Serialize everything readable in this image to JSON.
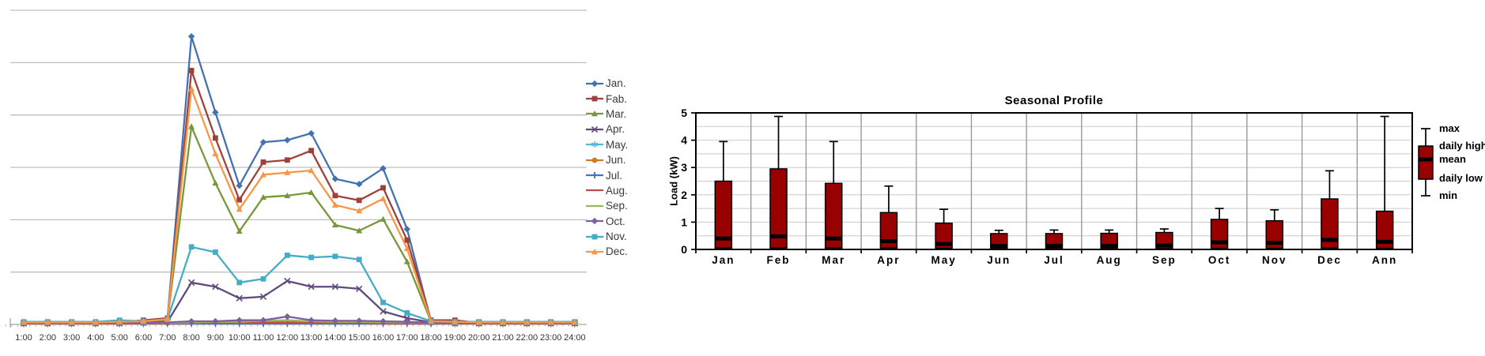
{
  "page": {
    "background": "#ffffff"
  },
  "chart_data": [
    {
      "type": "line",
      "title": "",
      "x_labels": [
        "1:00",
        "2:00",
        "3:00",
        "4:00",
        "5:00",
        "6:00",
        "7:00",
        "8:00",
        "9:00",
        "10:00",
        "11:00",
        "12:00",
        "13:00",
        "14:00",
        "15:00",
        "16:00",
        "17:00",
        "18:00",
        "19:00",
        "20:00",
        "21:00",
        "22:00",
        "23:00",
        "24:00"
      ],
      "ylim": [
        0,
        6.2
      ],
      "gridline_step": 1,
      "grid_color": "#BFBFBF",
      "axis_color": "#A8A8A8",
      "label_color": "#333333",
      "legend_position": "right",
      "series": [
        {
          "name": "Jan.",
          "color": "#4472B0",
          "marker": "diamond",
          "values": [
            0.03,
            0.03,
            0.03,
            0.03,
            0.04,
            0.05,
            0.1,
            5.5,
            4.05,
            2.65,
            3.48,
            3.52,
            3.65,
            2.78,
            2.68,
            2.98,
            1.82,
            0.06,
            0.04,
            0.03,
            0.03,
            0.03,
            0.03,
            0.03
          ]
        },
        {
          "name": "Fab.",
          "color": "#9E413B",
          "marker": "square",
          "values": [
            0.03,
            0.03,
            0.03,
            0.03,
            0.04,
            0.08,
            0.12,
            4.85,
            3.56,
            2.38,
            3.1,
            3.14,
            3.32,
            2.46,
            2.37,
            2.61,
            1.61,
            0.08,
            0.08,
            0.03,
            0.03,
            0.03,
            0.03,
            0.03
          ]
        },
        {
          "name": "Mar.",
          "color": "#76983B",
          "marker": "triangle",
          "values": [
            0.02,
            0.02,
            0.02,
            0.02,
            0.03,
            0.04,
            0.08,
            3.78,
            2.7,
            1.78,
            2.43,
            2.46,
            2.52,
            1.9,
            1.79,
            2.01,
            1.2,
            0.05,
            0.03,
            0.02,
            0.02,
            0.02,
            0.02,
            0.02
          ]
        },
        {
          "name": "Apr.",
          "color": "#604A7B",
          "marker": "x",
          "values": [
            0.02,
            0.02,
            0.02,
            0.02,
            0.02,
            0.03,
            0.05,
            0.8,
            0.72,
            0.5,
            0.53,
            0.83,
            0.72,
            0.72,
            0.68,
            0.25,
            0.12,
            0.04,
            0.02,
            0.02,
            0.02,
            0.02,
            0.02,
            0.02
          ]
        },
        {
          "name": "May.",
          "color": "#55B7D9",
          "marker": "asterisk",
          "values": [
            0.02,
            0.02,
            0.02,
            0.02,
            0.02,
            0.02,
            0.03,
            0.04,
            0.04,
            0.04,
            0.04,
            0.05,
            0.04,
            0.04,
            0.04,
            0.03,
            0.03,
            0.02,
            0.02,
            0.02,
            0.02,
            0.02,
            0.02,
            0.02
          ]
        },
        {
          "name": "Jun.",
          "color": "#CE7A29",
          "marker": "circle",
          "values": [
            0.03,
            0.03,
            0.03,
            0.03,
            0.03,
            0.03,
            0.03,
            0.04,
            0.04,
            0.05,
            0.05,
            0.06,
            0.05,
            0.05,
            0.05,
            0.04,
            0.04,
            0.04,
            0.03,
            0.03,
            0.03,
            0.03,
            0.03,
            0.03
          ]
        },
        {
          "name": "Jul.",
          "color": "#4472C4",
          "marker": "plus",
          "values": [
            0.02,
            0.02,
            0.02,
            0.02,
            0.02,
            0.02,
            0.02,
            0.02,
            0.02,
            0.02,
            0.02,
            0.02,
            0.02,
            0.02,
            0.02,
            0.02,
            0.02,
            0.02,
            0.02,
            0.02,
            0.02,
            0.02,
            0.02,
            0.02
          ]
        },
        {
          "name": "Aug.",
          "color": "#BE4B48",
          "marker": "none",
          "values": [
            0.02,
            0.02,
            0.02,
            0.02,
            0.02,
            0.02,
            0.02,
            0.03,
            0.03,
            0.03,
            0.03,
            0.03,
            0.03,
            0.03,
            0.03,
            0.02,
            0.02,
            0.02,
            0.02,
            0.02,
            0.02,
            0.02,
            0.02,
            0.02
          ]
        },
        {
          "name": "Sep.",
          "color": "#9ABA59",
          "marker": "none",
          "values": [
            0.03,
            0.03,
            0.03,
            0.03,
            0.03,
            0.03,
            0.03,
            0.04,
            0.05,
            0.05,
            0.07,
            0.08,
            0.06,
            0.05,
            0.05,
            0.04,
            0.04,
            0.03,
            0.03,
            0.03,
            0.03,
            0.03,
            0.03,
            0.03
          ]
        },
        {
          "name": "Oct.",
          "color": "#7D60A0",
          "marker": "diamond",
          "values": [
            0.03,
            0.03,
            0.03,
            0.03,
            0.03,
            0.03,
            0.04,
            0.06,
            0.06,
            0.08,
            0.08,
            0.15,
            0.08,
            0.07,
            0.07,
            0.06,
            0.05,
            0.03,
            0.03,
            0.03,
            0.03,
            0.03,
            0.03,
            0.03
          ]
        },
        {
          "name": "Nov.",
          "color": "#45ACC8",
          "marker": "square",
          "values": [
            0.05,
            0.05,
            0.05,
            0.05,
            0.08,
            0.06,
            0.1,
            1.48,
            1.38,
            0.8,
            0.87,
            1.32,
            1.28,
            1.3,
            1.24,
            0.42,
            0.22,
            0.06,
            0.05,
            0.05,
            0.05,
            0.05,
            0.05,
            0.05
          ]
        },
        {
          "name": "Dec.",
          "color": "#F79646",
          "marker": "triangle",
          "values": [
            0.04,
            0.04,
            0.04,
            0.04,
            0.05,
            0.06,
            0.1,
            4.5,
            3.26,
            2.2,
            2.86,
            2.9,
            2.94,
            2.28,
            2.17,
            2.4,
            1.45,
            0.06,
            0.05,
            0.04,
            0.04,
            0.04,
            0.04,
            0.04
          ]
        }
      ]
    },
    {
      "type": "box",
      "title": "Seasonal Profile",
      "ylabel": "Load (kW)",
      "ylim": [
        0,
        5
      ],
      "yticks": [
        "0",
        "1",
        "2",
        "3",
        "4",
        "5"
      ],
      "minor_grid_step": 0.5,
      "bar_color": "#990000",
      "box_border_color": "#000000",
      "h_grid_color": "#C9C9C9",
      "v_grid_color": "#9A9A9A",
      "categories": [
        "Jan",
        "Feb",
        "Mar",
        "Apr",
        "May",
        "Jun",
        "Jul",
        "Aug",
        "Sep",
        "Oct",
        "Nov",
        "Dec",
        "Ann"
      ],
      "legend_labels": [
        "max",
        "daily high",
        "mean",
        "daily low",
        "min"
      ],
      "boxes": [
        {
          "month": "Jan",
          "max": 3.95,
          "daily_high": 2.5,
          "mean": 0.4,
          "daily_low": 0.05,
          "min": 0
        },
        {
          "month": "Feb",
          "max": 4.87,
          "daily_high": 2.95,
          "mean": 0.48,
          "daily_low": 0.05,
          "min": 0
        },
        {
          "month": "Mar",
          "max": 3.95,
          "daily_high": 2.42,
          "mean": 0.4,
          "daily_low": 0.05,
          "min": 0
        },
        {
          "month": "Apr",
          "max": 2.32,
          "daily_high": 1.35,
          "mean": 0.3,
          "daily_low": 0.05,
          "min": 0
        },
        {
          "month": "May",
          "max": 1.47,
          "daily_high": 0.96,
          "mean": 0.2,
          "daily_low": 0.04,
          "min": 0
        },
        {
          "month": "Jun",
          "max": 0.7,
          "daily_high": 0.58,
          "mean": 0.13,
          "daily_low": 0.03,
          "min": 0
        },
        {
          "month": "Jul",
          "max": 0.71,
          "daily_high": 0.58,
          "mean": 0.13,
          "daily_low": 0.03,
          "min": 0
        },
        {
          "month": "Aug",
          "max": 0.71,
          "daily_high": 0.59,
          "mean": 0.13,
          "daily_low": 0.03,
          "min": 0
        },
        {
          "month": "Sep",
          "max": 0.75,
          "daily_high": 0.62,
          "mean": 0.14,
          "daily_low": 0.03,
          "min": 0
        },
        {
          "month": "Oct",
          "max": 1.5,
          "daily_high": 1.1,
          "mean": 0.26,
          "daily_low": 0.04,
          "min": 0
        },
        {
          "month": "Nov",
          "max": 1.45,
          "daily_high": 1.05,
          "mean": 0.24,
          "daily_low": 0.04,
          "min": 0
        },
        {
          "month": "Dec",
          "max": 2.88,
          "daily_high": 1.85,
          "mean": 0.35,
          "daily_low": 0.05,
          "min": 0
        },
        {
          "month": "Ann",
          "max": 4.87,
          "daily_high": 1.4,
          "mean": 0.28,
          "daily_low": 0.04,
          "min": 0
        }
      ]
    }
  ]
}
